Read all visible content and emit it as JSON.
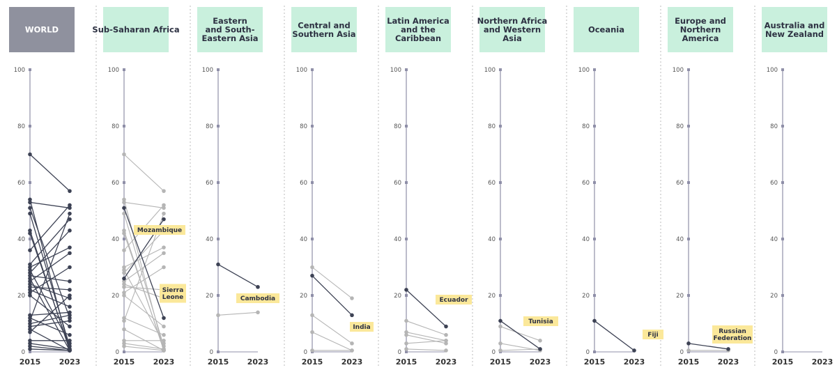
{
  "colors": {
    "world_header": "#8f919e",
    "region_header": "#c9f0dd",
    "highlight": "#3d4254",
    "other": "#b5b5b5",
    "axis": "#8f8fa8",
    "label_bg": "#fbe89a",
    "divider": "#bbbbbb"
  },
  "chart_data": [
    {
      "type": "line",
      "header": "WORLD",
      "x": [
        "2015",
        "2023"
      ],
      "ylim": [
        0,
        100
      ],
      "yticks": [
        "0",
        "20",
        "40",
        "60",
        "80",
        "100"
      ],
      "series": [
        {
          "values": [
            70,
            57
          ],
          "highlight": true
        },
        {
          "values": [
            54,
            0.5
          ],
          "highlight": true
        },
        {
          "values": [
            53,
            51
          ],
          "highlight": true
        },
        {
          "values": [
            51,
            12
          ],
          "highlight": true
        },
        {
          "values": [
            49,
            2
          ],
          "highlight": true
        },
        {
          "values": [
            43,
            0.5
          ],
          "highlight": true
        },
        {
          "values": [
            42,
            1
          ],
          "highlight": true
        },
        {
          "values": [
            36,
            52
          ],
          "highlight": true
        },
        {
          "values": [
            31,
            47
          ],
          "highlight": true
        },
        {
          "values": [
            30,
            37
          ],
          "highlight": true
        },
        {
          "values": [
            29,
            3
          ],
          "highlight": true
        },
        {
          "values": [
            28,
            43
          ],
          "highlight": true
        },
        {
          "values": [
            27,
            25
          ],
          "highlight": true
        },
        {
          "values": [
            26,
            0.5
          ],
          "highlight": true
        },
        {
          "values": [
            25,
            35
          ],
          "highlight": true
        },
        {
          "values": [
            24,
            19
          ],
          "highlight": true
        },
        {
          "values": [
            23,
            22
          ],
          "highlight": true
        },
        {
          "values": [
            22,
            16
          ],
          "highlight": true
        },
        {
          "values": [
            21,
            30
          ],
          "highlight": true
        },
        {
          "values": [
            20,
            9
          ],
          "highlight": true
        },
        {
          "values": [
            13,
            14
          ],
          "highlight": true
        },
        {
          "values": [
            12,
            6
          ],
          "highlight": true
        },
        {
          "values": [
            11,
            49
          ],
          "highlight": true
        },
        {
          "values": [
            10,
            13
          ],
          "highlight": true
        },
        {
          "values": [
            9,
            11
          ],
          "highlight": true
        },
        {
          "values": [
            8,
            0.5
          ],
          "highlight": true
        },
        {
          "values": [
            7,
            20
          ],
          "highlight": true
        },
        {
          "values": [
            4,
            4
          ],
          "highlight": true
        },
        {
          "values": [
            3,
            1
          ],
          "highlight": true
        },
        {
          "values": [
            2,
            0.5
          ],
          "highlight": true
        },
        {
          "values": [
            1,
            0.5
          ],
          "highlight": true
        }
      ],
      "annotations": []
    },
    {
      "type": "line",
      "header": "Sub-Saharan Africa",
      "x": [
        "2015",
        "2023"
      ],
      "ylim": [
        0,
        100
      ],
      "yticks": [
        "0",
        "20",
        "40",
        "60",
        "80",
        "100"
      ],
      "series": [
        {
          "values": [
            70,
            57
          ],
          "highlight": false
        },
        {
          "values": [
            54,
            0.5
          ],
          "highlight": false
        },
        {
          "values": [
            53,
            51
          ],
          "highlight": false
        },
        {
          "values": [
            49,
            2
          ],
          "highlight": false
        },
        {
          "values": [
            43,
            0.5
          ],
          "highlight": false
        },
        {
          "values": [
            42,
            1
          ],
          "highlight": false
        },
        {
          "values": [
            36,
            52
          ],
          "highlight": false
        },
        {
          "values": [
            30,
            37
          ],
          "highlight": false
        },
        {
          "values": [
            29,
            3
          ],
          "highlight": false
        },
        {
          "values": [
            28,
            43
          ],
          "highlight": false
        },
        {
          "values": [
            25,
            35
          ],
          "highlight": false
        },
        {
          "values": [
            24,
            19
          ],
          "highlight": false
        },
        {
          "values": [
            23,
            22
          ],
          "highlight": false
        },
        {
          "values": [
            21,
            30
          ],
          "highlight": false
        },
        {
          "values": [
            20,
            9
          ],
          "highlight": false
        },
        {
          "values": [
            12,
            6
          ],
          "highlight": false
        },
        {
          "values": [
            11,
            49
          ],
          "highlight": false
        },
        {
          "values": [
            8,
            0.5
          ],
          "highlight": false
        },
        {
          "values": [
            4,
            4
          ],
          "highlight": false
        },
        {
          "values": [
            3,
            1
          ],
          "highlight": false
        },
        {
          "values": [
            2,
            0.5
          ],
          "highlight": false
        },
        {
          "values": [
            51,
            12
          ],
          "highlight": true
        },
        {
          "values": [
            26,
            47
          ],
          "highlight": true
        }
      ],
      "annotations": [
        "Mozambique",
        "Sierra\nLeone"
      ]
    },
    {
      "type": "line",
      "header": "Eastern\nand South-\nEastern Asia",
      "x": [
        "2015",
        "2023"
      ],
      "ylim": [
        0,
        100
      ],
      "yticks": [
        "0",
        "20",
        "40",
        "60",
        "80",
        "100"
      ],
      "series": [
        {
          "values": [
            13,
            14
          ],
          "highlight": false
        },
        {
          "values": [
            31,
            23
          ],
          "highlight": true
        }
      ],
      "annotations": [
        "Cambodia"
      ]
    },
    {
      "type": "line",
      "header": "Central and\nSouthern Asia",
      "x": [
        "2015",
        "2023"
      ],
      "ylim": [
        0,
        100
      ],
      "yticks": [
        "0",
        "20",
        "40",
        "60",
        "80",
        "100"
      ],
      "series": [
        {
          "values": [
            30,
            19
          ],
          "highlight": false
        },
        {
          "values": [
            13,
            3
          ],
          "highlight": false
        },
        {
          "values": [
            7,
            0.5
          ],
          "highlight": false
        },
        {
          "values": [
            0.5,
            0.5
          ],
          "highlight": false
        },
        {
          "values": [
            27,
            13
          ],
          "highlight": true
        }
      ],
      "annotations": [
        "India"
      ]
    },
    {
      "type": "line",
      "header": "Latin America\nand the\nCaribbean",
      "x": [
        "2015",
        "2023"
      ],
      "ylim": [
        0,
        100
      ],
      "yticks": [
        "0",
        "20",
        "40",
        "60",
        "80",
        "100"
      ],
      "series": [
        {
          "values": [
            11,
            6
          ],
          "highlight": false
        },
        {
          "values": [
            7,
            4
          ],
          "highlight": false
        },
        {
          "values": [
            6,
            3
          ],
          "highlight": false
        },
        {
          "values": [
            3,
            4
          ],
          "highlight": false
        },
        {
          "values": [
            1,
            0.5
          ],
          "highlight": false
        },
        {
          "values": [
            22,
            9
          ],
          "highlight": true
        }
      ],
      "annotations": [
        "Ecuador"
      ]
    },
    {
      "type": "line",
      "header": "Northern Africa\nand Western\nAsia",
      "x": [
        "2015",
        "2023"
      ],
      "ylim": [
        0,
        100
      ],
      "yticks": [
        "0",
        "20",
        "40",
        "60",
        "80",
        "100"
      ],
      "series": [
        {
          "values": [
            9,
            4
          ],
          "highlight": false
        },
        {
          "values": [
            3,
            0.5
          ],
          "highlight": false
        },
        {
          "values": [
            0.5,
            1
          ],
          "highlight": false
        },
        {
          "values": [
            11,
            1
          ],
          "highlight": true
        }
      ],
      "annotations": [
        "Tunisia"
      ]
    },
    {
      "type": "line",
      "header": "Oceania",
      "x": [
        "2015",
        "2023"
      ],
      "ylim": [
        0,
        100
      ],
      "yticks": [
        "0",
        "20",
        "40",
        "60",
        "80",
        "100"
      ],
      "series": [
        {
          "values": [
            11,
            0.5
          ],
          "highlight": true
        }
      ],
      "annotations": [
        "Fiji"
      ]
    },
    {
      "type": "line",
      "header": "Europe and\nNorthern\nAmerica",
      "x": [
        "2015",
        "2023"
      ],
      "ylim": [
        0,
        100
      ],
      "yticks": [
        "0",
        "20",
        "40",
        "60",
        "80",
        "100"
      ],
      "series": [
        {
          "values": [
            0.5,
            0.5
          ],
          "highlight": false
        },
        {
          "values": [
            3,
            1
          ],
          "highlight": true
        }
      ],
      "annotations": [
        "Russian\nFederation"
      ]
    },
    {
      "type": "line",
      "header": "Australia and\nNew Zealand",
      "x": [
        "2015",
        "2023"
      ],
      "ylim": [
        0,
        100
      ],
      "yticks": [
        "0",
        "20",
        "40",
        "60",
        "80",
        "100"
      ],
      "series": [],
      "annotations": []
    }
  ]
}
